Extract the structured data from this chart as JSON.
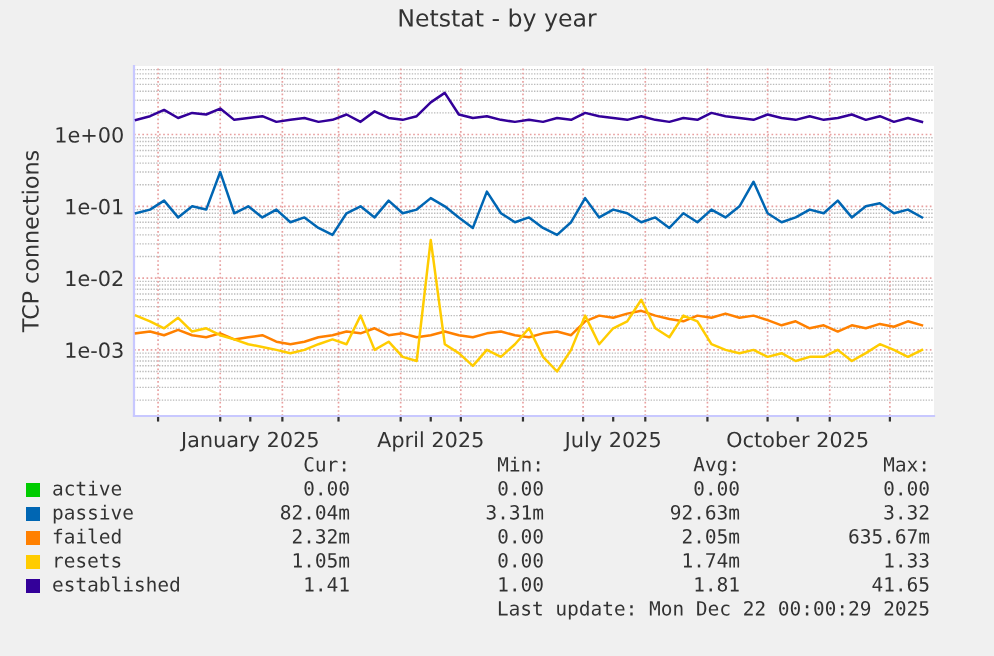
{
  "chart_data": {
    "type": "line",
    "title": "Netstat - by year",
    "ylabel": "TCP connections",
    "log": "y",
    "grid": true,
    "legend": "bottom",
    "marker": "none",
    "line_style": "solid",
    "ylim": [
      0.00012,
      9
    ],
    "yticks": [
      {
        "value": 0.001,
        "label": "1e-03"
      },
      {
        "value": 0.01,
        "label": "1e-02"
      },
      {
        "value": 0.1,
        "label": "1e-01"
      },
      {
        "value": 1,
        "label": "1e+00"
      }
    ],
    "xlim": [
      "2024-11-19",
      "2025-12-23"
    ],
    "xticks": [
      {
        "value": "2024-12-01",
        "label": null
      },
      {
        "value": "2025-01-01",
        "label": null
      },
      {
        "value": "2025-01-16",
        "label": "January 2025"
      },
      {
        "value": "2025-02-01",
        "label": null
      },
      {
        "value": "2025-03-01",
        "label": null
      },
      {
        "value": "2025-04-01",
        "label": null
      },
      {
        "value": "2025-04-16",
        "label": "April 2025"
      },
      {
        "value": "2025-05-01",
        "label": null
      },
      {
        "value": "2025-06-01",
        "label": null
      },
      {
        "value": "2025-07-01",
        "label": null
      },
      {
        "value": "2025-07-16",
        "label": "July 2025"
      },
      {
        "value": "2025-08-01",
        "label": null
      },
      {
        "value": "2025-09-01",
        "label": null
      },
      {
        "value": "2025-10-01",
        "label": null
      },
      {
        "value": "2025-10-16",
        "label": "October 2025"
      },
      {
        "value": "2025-11-01",
        "label": null
      },
      {
        "value": "2025-12-01",
        "label": null
      }
    ],
    "x": [
      "2024-11-20",
      "2024-11-27",
      "2024-12-04",
      "2024-12-11",
      "2024-12-18",
      "2024-12-25",
      "2025-01-01",
      "2025-01-08",
      "2025-01-15",
      "2025-01-22",
      "2025-01-29",
      "2025-02-05",
      "2025-02-12",
      "2025-02-19",
      "2025-02-26",
      "2025-03-05",
      "2025-03-12",
      "2025-03-19",
      "2025-03-26",
      "2025-04-02",
      "2025-04-09",
      "2025-04-16",
      "2025-04-23",
      "2025-04-30",
      "2025-05-07",
      "2025-05-14",
      "2025-05-21",
      "2025-05-28",
      "2025-06-04",
      "2025-06-11",
      "2025-06-18",
      "2025-06-25",
      "2025-07-02",
      "2025-07-09",
      "2025-07-16",
      "2025-07-23",
      "2025-07-30",
      "2025-08-06",
      "2025-08-13",
      "2025-08-20",
      "2025-08-27",
      "2025-09-03",
      "2025-09-10",
      "2025-09-17",
      "2025-09-24",
      "2025-10-01",
      "2025-10-08",
      "2025-10-15",
      "2025-10-22",
      "2025-10-29",
      "2025-11-05",
      "2025-11-12",
      "2025-11-19",
      "2025-11-26",
      "2025-12-03",
      "2025-12-10",
      "2025-12-17"
    ],
    "series": [
      {
        "name": "active",
        "color": "#00cc00",
        "values": [
          null,
          null,
          null,
          null,
          null,
          null,
          null,
          null,
          null,
          null,
          null,
          null,
          null,
          null,
          null,
          null,
          null,
          null,
          null,
          null,
          null,
          null,
          null,
          null,
          null,
          null,
          null,
          null,
          null,
          null,
          null,
          null,
          null,
          null,
          null,
          null,
          null,
          null,
          null,
          null,
          null,
          null,
          null,
          null,
          null,
          null,
          null,
          null,
          null,
          null,
          null,
          null,
          null,
          null,
          null,
          null,
          null
        ]
      },
      {
        "name": "passive",
        "color": "#0066b3",
        "values": [
          0.08,
          0.09,
          0.12,
          0.07,
          0.1,
          0.09,
          0.3,
          0.08,
          0.1,
          0.07,
          0.09,
          0.06,
          0.07,
          0.05,
          0.04,
          0.08,
          0.1,
          0.07,
          0.12,
          0.08,
          0.09,
          0.13,
          0.1,
          0.07,
          0.05,
          0.16,
          0.08,
          0.06,
          0.07,
          0.05,
          0.04,
          0.06,
          0.13,
          0.07,
          0.09,
          0.08,
          0.06,
          0.07,
          0.05,
          0.08,
          0.06,
          0.09,
          0.07,
          0.1,
          0.22,
          0.08,
          0.06,
          0.07,
          0.09,
          0.08,
          0.12,
          0.07,
          0.1,
          0.11,
          0.08,
          0.09,
          0.07
        ]
      },
      {
        "name": "failed",
        "color": "#ff8000",
        "values": [
          0.0017,
          0.0018,
          0.0016,
          0.0019,
          0.0016,
          0.0015,
          0.0017,
          0.0014,
          0.0015,
          0.0016,
          0.0013,
          0.0012,
          0.0013,
          0.0015,
          0.0016,
          0.0018,
          0.0017,
          0.002,
          0.0016,
          0.0017,
          0.0015,
          0.0016,
          0.0018,
          0.0016,
          0.0015,
          0.0017,
          0.0018,
          0.0016,
          0.0015,
          0.0017,
          0.0018,
          0.0016,
          0.0025,
          0.003,
          0.0028,
          0.0032,
          0.0035,
          0.003,
          0.0027,
          0.0025,
          0.003,
          0.0028,
          0.0032,
          0.0028,
          0.003,
          0.0026,
          0.0022,
          0.0025,
          0.002,
          0.0022,
          0.0018,
          0.0022,
          0.002,
          0.0023,
          0.0021,
          0.0025,
          0.0022
        ]
      },
      {
        "name": "resets",
        "color": "#ffcc00",
        "values": [
          0.003,
          0.0025,
          0.002,
          0.0028,
          0.0018,
          0.002,
          0.0016,
          0.0014,
          0.0012,
          0.0011,
          0.001,
          0.0009,
          0.001,
          0.0012,
          0.0014,
          0.0012,
          0.003,
          0.001,
          0.0013,
          0.0008,
          0.0007,
          0.034,
          0.0012,
          0.0009,
          0.0006,
          0.001,
          0.0008,
          0.0012,
          0.002,
          0.0008,
          0.0005,
          0.001,
          0.003,
          0.0012,
          0.002,
          0.0025,
          0.005,
          0.002,
          0.0015,
          0.003,
          0.0025,
          0.0012,
          0.001,
          0.0009,
          0.001,
          0.0008,
          0.0009,
          0.0007,
          0.0008,
          0.0008,
          0.001,
          0.0007,
          0.0009,
          0.0012,
          0.001,
          0.0008,
          0.001
        ]
      },
      {
        "name": "established",
        "color": "#330099",
        "values": [
          1.6,
          1.8,
          2.2,
          1.7,
          2.0,
          1.9,
          2.3,
          1.6,
          1.7,
          1.8,
          1.5,
          1.6,
          1.7,
          1.5,
          1.6,
          1.9,
          1.5,
          2.1,
          1.7,
          1.6,
          1.8,
          2.8,
          3.8,
          1.9,
          1.7,
          1.8,
          1.6,
          1.5,
          1.6,
          1.5,
          1.7,
          1.6,
          2.0,
          1.8,
          1.7,
          1.6,
          1.8,
          1.6,
          1.5,
          1.7,
          1.6,
          2.0,
          1.8,
          1.7,
          1.6,
          1.9,
          1.7,
          1.6,
          1.8,
          1.6,
          1.7,
          1.9,
          1.6,
          1.8,
          1.5,
          1.7,
          1.5
        ]
      }
    ],
    "annotations": [
      "Cur:",
      "Min:",
      "Avg:",
      "Max:",
      "0.00",
      "0.00",
      "0.00",
      "0.00",
      "82.04m",
      "3.31m",
      "92.63m",
      "3.32",
      "2.32m",
      "0.00",
      "2.05m",
      "635.67m",
      "1.05m",
      "0.00",
      "1.74m",
      "1.33",
      "1.41",
      "1.00",
      "1.81",
      "41.65",
      "Last update: Mon Dec 22 00:00:29 2025"
    ]
  }
}
